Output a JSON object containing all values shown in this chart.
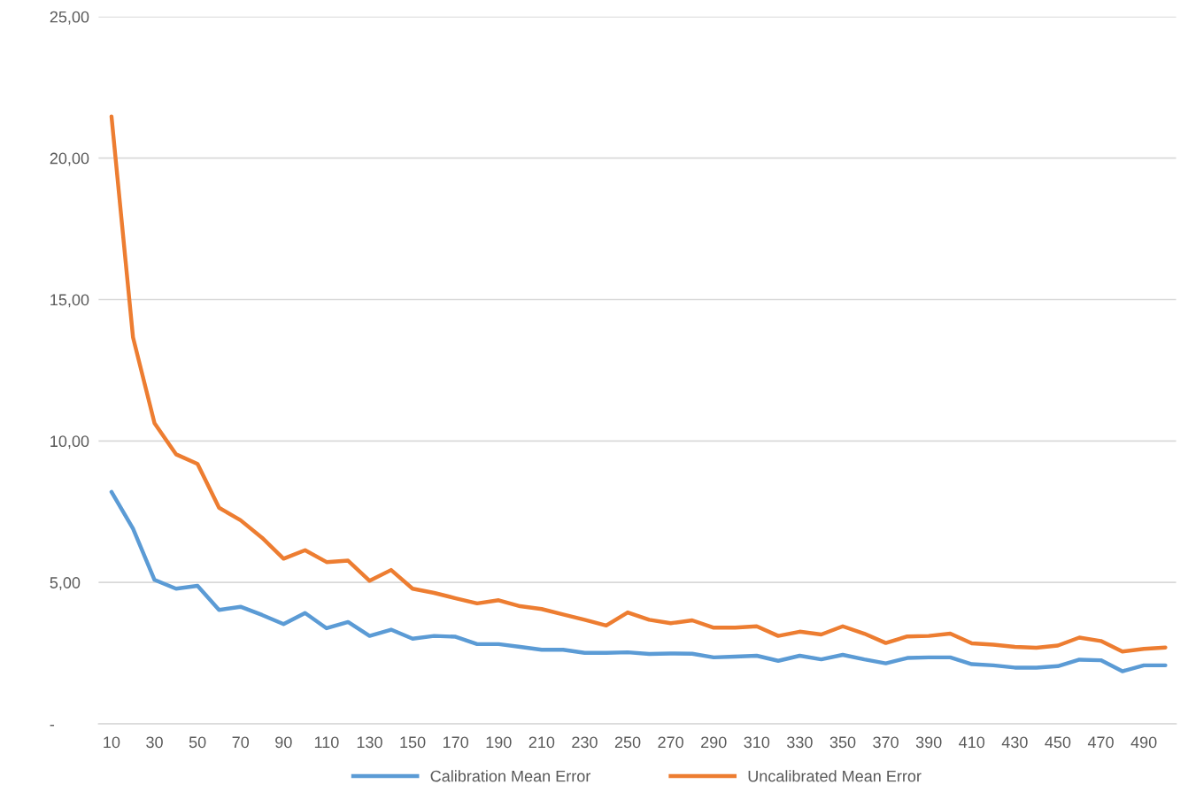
{
  "chart_data": {
    "type": "line",
    "categories": [
      "10",
      null,
      "30",
      null,
      "50",
      null,
      "70",
      null,
      "90",
      null,
      "110",
      null,
      "130",
      null,
      "150",
      null,
      "170",
      null,
      "190",
      null,
      "210",
      null,
      "230",
      null,
      "250",
      null,
      "270",
      null,
      "290",
      null,
      "310",
      null,
      "330",
      null,
      "350",
      null,
      "370",
      null,
      "390",
      null,
      "410",
      null,
      "430",
      null,
      "450",
      null,
      "470",
      null,
      "490",
      null
    ],
    "series": [
      {
        "name": "Calibration Mean Error",
        "color": "#5b9bd5",
        "values": [
          8.2,
          6.9,
          5.09,
          4.78,
          4.88,
          4.03,
          4.14,
          3.85,
          3.53,
          3.92,
          3.38,
          3.6,
          3.11,
          3.33,
          3.01,
          3.11,
          3.08,
          2.82,
          2.82,
          2.72,
          2.62,
          2.62,
          2.51,
          2.51,
          2.53,
          2.47,
          2.49,
          2.48,
          2.35,
          2.38,
          2.41,
          2.23,
          2.41,
          2.28,
          2.44,
          2.28,
          2.14,
          2.33,
          2.35,
          2.35,
          2.11,
          2.07,
          1.99,
          1.99,
          2.04,
          2.27,
          2.25,
          1.86,
          2.07,
          2.07
        ]
      },
      {
        "name": "Uncalibrated Mean Error",
        "color": "#ed7d31",
        "values": [
          21.47,
          13.66,
          10.63,
          9.53,
          9.19,
          7.64,
          7.2,
          6.58,
          5.84,
          6.14,
          5.72,
          5.77,
          5.06,
          5.44,
          4.78,
          4.63,
          4.44,
          4.26,
          4.37,
          4.16,
          4.06,
          3.87,
          3.68,
          3.48,
          3.94,
          3.68,
          3.56,
          3.66,
          3.4,
          3.4,
          3.45,
          3.11,
          3.26,
          3.16,
          3.45,
          3.19,
          2.86,
          3.09,
          3.11,
          3.19,
          2.85,
          2.8,
          2.72,
          2.69,
          2.77,
          3.05,
          2.93,
          2.56,
          2.65,
          2.7
        ]
      }
    ],
    "ylim": [
      0,
      25
    ],
    "yticks": [
      {
        "value": 0,
        "label": "-"
      },
      {
        "value": 5,
        "label": "5,00"
      },
      {
        "value": 10,
        "label": "10,00"
      },
      {
        "value": 15,
        "label": "15,00"
      },
      {
        "value": 20,
        "label": "20,00"
      },
      {
        "value": 25,
        "label": "25,00"
      }
    ],
    "grid": "y",
    "legend": "bottom",
    "marker": "none",
    "line_style": "solid"
  }
}
